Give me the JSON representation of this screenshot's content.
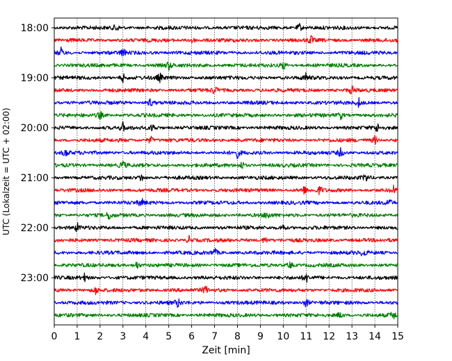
{
  "chart_data": {
    "type": "line",
    "xlabel": "Zeit  [min]",
    "ylabel": "UTC (Lokalzeit = UTC + 02:00)",
    "xlim": [
      0,
      15
    ],
    "x_ticks": [
      "0",
      "1",
      "2",
      "3",
      "4",
      "5",
      "6",
      "7",
      "8",
      "9",
      "10",
      "11",
      "12",
      "13",
      "14",
      "15"
    ],
    "x_grid": true,
    "y_tick_labels": [
      "18:00",
      "19:00",
      "20:00",
      "21:00",
      "22:00",
      "23:00"
    ],
    "row_interval_minutes": 15,
    "trace_colors": [
      "#000000",
      "#ff0000",
      "#0000ff",
      "#008000"
    ],
    "series": [
      {
        "start": "18:00",
        "color": "#000000",
        "events": [
          2.7,
          10.7
        ]
      },
      {
        "start": "18:15",
        "color": "#ff0000",
        "events": [
          6.0,
          11.2
        ]
      },
      {
        "start": "18:30",
        "color": "#0000ff",
        "events": [
          0.3,
          3.0
        ]
      },
      {
        "start": "18:45",
        "color": "#008000",
        "events": [
          5.0,
          10.0
        ]
      },
      {
        "start": "19:00",
        "color": "#000000",
        "events": [
          3.0,
          4.6,
          11.0
        ]
      },
      {
        "start": "19:15",
        "color": "#ff0000",
        "events": [
          7.0,
          13.0
        ]
      },
      {
        "start": "19:30",
        "color": "#0000ff",
        "events": [
          4.2,
          13.3
        ]
      },
      {
        "start": "19:45",
        "color": "#008000",
        "events": [
          2.0,
          12.5
        ]
      },
      {
        "start": "20:00",
        "color": "#000000",
        "events": [
          3.0,
          4.3,
          14.1
        ]
      },
      {
        "start": "20:15",
        "color": "#ff0000",
        "events": [
          4.2,
          14.0
        ]
      },
      {
        "start": "20:30",
        "color": "#0000ff",
        "events": [
          0.5,
          8.0,
          12.5
        ]
      },
      {
        "start": "20:45",
        "color": "#008000",
        "events": [
          3.0,
          8.2
        ]
      },
      {
        "start": "21:00",
        "color": "#000000",
        "events": [
          3.8,
          13.6
        ]
      },
      {
        "start": "21:15",
        "color": "#ff0000",
        "events": [
          10.9,
          11.6,
          14.8
        ]
      },
      {
        "start": "21:30",
        "color": "#0000ff",
        "events": [
          3.8,
          14.6
        ]
      },
      {
        "start": "21:45",
        "color": "#008000",
        "events": [
          2.4,
          9.3
        ]
      },
      {
        "start": "22:00",
        "color": "#000000",
        "events": [
          1.0,
          10.0
        ]
      },
      {
        "start": "22:15",
        "color": "#ff0000",
        "events": [
          5.9,
          9.2
        ]
      },
      {
        "start": "22:30",
        "color": "#0000ff",
        "events": [
          7.0,
          13.5
        ]
      },
      {
        "start": "22:45",
        "color": "#008000",
        "events": [
          3.6,
          10.3
        ]
      },
      {
        "start": "23:00",
        "color": "#000000",
        "events": [
          1.3,
          11.0
        ]
      },
      {
        "start": "23:15",
        "color": "#ff0000",
        "events": [
          1.8,
          6.6
        ]
      },
      {
        "start": "23:30",
        "color": "#0000ff",
        "events": [
          5.4,
          11.0
        ]
      },
      {
        "start": "23:45",
        "color": "#008000",
        "events": [
          12.5,
          14.8
        ]
      }
    ]
  }
}
